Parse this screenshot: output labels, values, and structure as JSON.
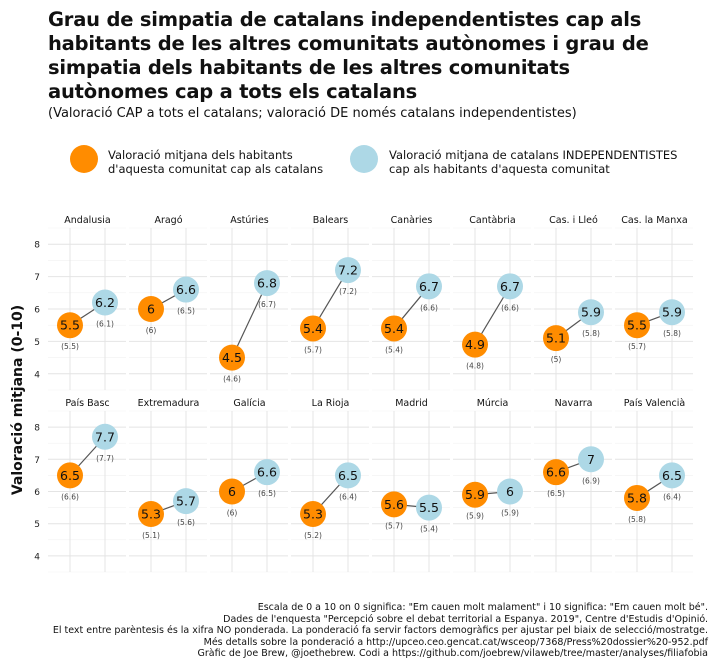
{
  "title": "Grau de simpatia de catalans independentistes cap als habitants de les altres comunitats autònomes i grau de simpatia dels habitants de les altres comunitats autònomes cap a tots els catalans",
  "subtitle": "(Valoració CAP a tots el catalans; valoració DE només catalans independentistes)",
  "legend": [
    {
      "label": "Valoració mitjana dels habitants\nd'aquesta comunitat cap als catalans",
      "color": "#FF8C00"
    },
    {
      "label": "Valoració mitjana de catalans INDEPENDENTISTES\ncap als habitants d'aquesta comunitat",
      "color": "#ADD8E6"
    }
  ],
  "caption": [
    "Escala de 0 a 10 on 0 significa: \"Em cauen molt malament\" i 10 significa: \"Em cauen molt bé\".",
    "Dades de l'enquesta \"Percepció sobre el debat territorial a Espanya. 2019\", Centre d'Estudis d'Opinió.",
    "El text entre parèntesis és la xifra NO ponderada. La ponderació fa servir factors demogràfics per ajustar pel biaix de selecció/mostratge.",
    "Més detalls sobre la ponderació a http://upceo.ceo.gencat.cat/wsceop/7368/Press%20dossier%20-952.pdf",
    "Gràfic de Joe Brew, @joethebrew. Codi a https://github.com/joebrew/vilaweb/tree/master/analyses/filiafobia"
  ],
  "chart_data": {
    "type": "scatter",
    "ylabel": "Valoració mitjana (0-10)",
    "ylim": [
      3.5,
      8.5
    ],
    "yticks": [
      "4",
      "5",
      "6",
      "7",
      "8"
    ],
    "series": [
      {
        "name": "Valoració mitjana dels habitants d'aquesta comunitat cap als catalans",
        "color": "#FF8C00"
      },
      {
        "name": "Valoració mitjana de catalans INDEPENDENTISTES cap als habitants d'aquesta comunitat",
        "color": "#ADD8E6"
      }
    ],
    "panels": [
      {
        "name": "Andalusia",
        "cap": 5.5,
        "cap_label": "5.5",
        "cap_raw": "(5.5)",
        "de": 6.2,
        "de_label": "6.2",
        "de_raw": "(6.1)"
      },
      {
        "name": "Aragó",
        "cap": 6.0,
        "cap_label": "6",
        "cap_raw": "(6)",
        "de": 6.6,
        "de_label": "6.6",
        "de_raw": "(6.5)"
      },
      {
        "name": "Astúries",
        "cap": 4.5,
        "cap_label": "4.5",
        "cap_raw": "(4.6)",
        "de": 6.8,
        "de_label": "6.8",
        "de_raw": "(6.7)"
      },
      {
        "name": "Balears",
        "cap": 5.4,
        "cap_label": "5.4",
        "cap_raw": "(5.7)",
        "de": 7.2,
        "de_label": "7.2",
        "de_raw": "(7.2)"
      },
      {
        "name": "Canàries",
        "cap": 5.4,
        "cap_label": "5.4",
        "cap_raw": "(5.4)",
        "de": 6.7,
        "de_label": "6.7",
        "de_raw": "(6.6)"
      },
      {
        "name": "Cantàbria",
        "cap": 4.9,
        "cap_label": "4.9",
        "cap_raw": "(4.8)",
        "de": 6.7,
        "de_label": "6.7",
        "de_raw": "(6.6)"
      },
      {
        "name": "Cas. i Lleó",
        "cap": 5.1,
        "cap_label": "5.1",
        "cap_raw": "(5)",
        "de": 5.9,
        "de_label": "5.9",
        "de_raw": "(5.8)"
      },
      {
        "name": "Cas. la Manxa",
        "cap": 5.5,
        "cap_label": "5.5",
        "cap_raw": "(5.7)",
        "de": 5.9,
        "de_label": "5.9",
        "de_raw": "(5.8)"
      },
      {
        "name": "País Basc",
        "cap": 6.5,
        "cap_label": "6.5",
        "cap_raw": "(6.6)",
        "de": 7.7,
        "de_label": "7.7",
        "de_raw": "(7.7)"
      },
      {
        "name": "Extremadura",
        "cap": 5.3,
        "cap_label": "5.3",
        "cap_raw": "(5.1)",
        "de": 5.7,
        "de_label": "5.7",
        "de_raw": "(5.6)"
      },
      {
        "name": "Galícia",
        "cap": 6.0,
        "cap_label": "6",
        "cap_raw": "(6)",
        "de": 6.6,
        "de_label": "6.6",
        "de_raw": "(6.5)"
      },
      {
        "name": "La Rioja",
        "cap": 5.3,
        "cap_label": "5.3",
        "cap_raw": "(5.2)",
        "de": 6.5,
        "de_label": "6.5",
        "de_raw": "(6.4)"
      },
      {
        "name": "Madrid",
        "cap": 5.6,
        "cap_label": "5.6",
        "cap_raw": "(5.7)",
        "de": 5.5,
        "de_label": "5.5",
        "de_raw": "(5.4)"
      },
      {
        "name": "Múrcia",
        "cap": 5.9,
        "cap_label": "5.9",
        "cap_raw": "(5.9)",
        "de": 6.0,
        "de_label": "6",
        "de_raw": "(5.9)"
      },
      {
        "name": "Navarra",
        "cap": 6.6,
        "cap_label": "6.6",
        "cap_raw": "(6.5)",
        "de": 7.0,
        "de_label": "7",
        "de_raw": "(6.9)"
      },
      {
        "name": "País Valencià",
        "cap": 5.8,
        "cap_label": "5.8",
        "cap_raw": "(5.8)",
        "de": 6.5,
        "de_label": "6.5",
        "de_raw": "(6.4)"
      }
    ]
  }
}
